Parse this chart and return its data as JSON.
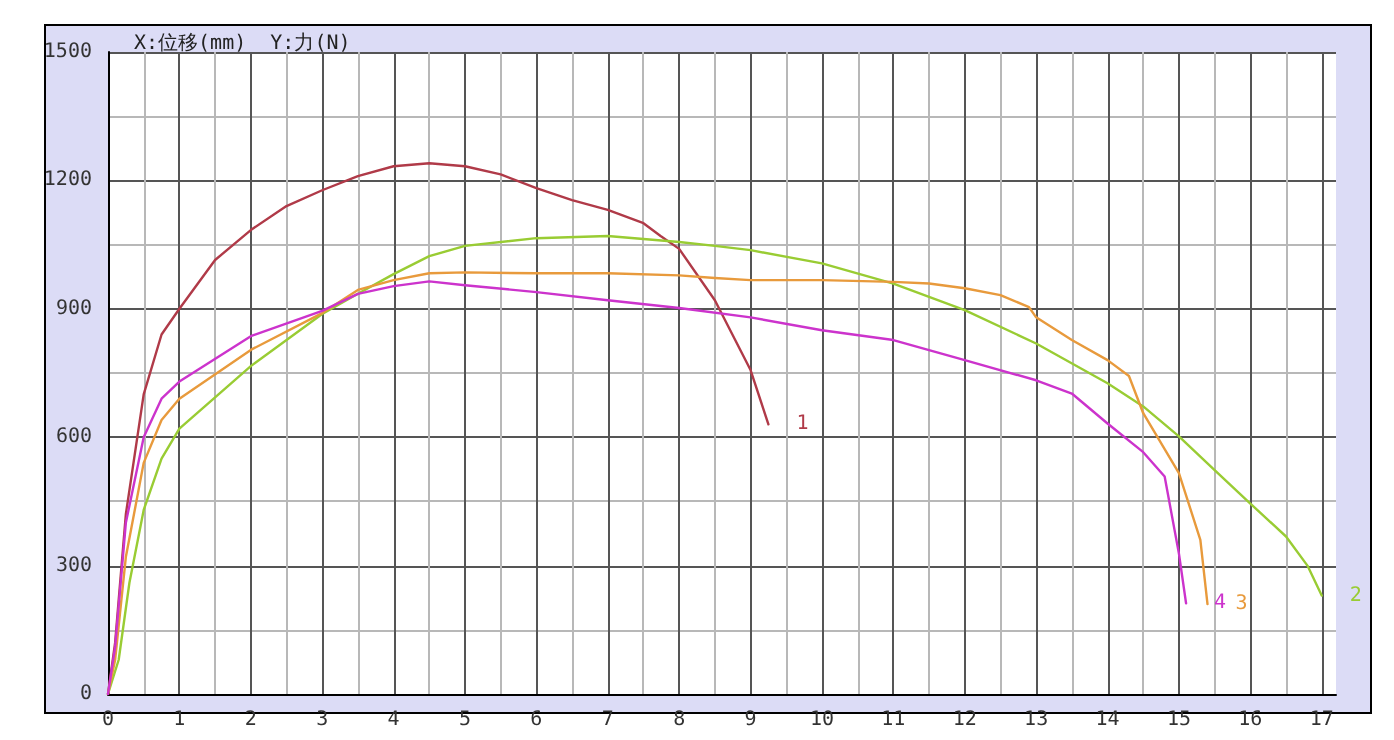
{
  "chart_data": {
    "type": "line",
    "title": "X:位移(mm)  Y:力(N)",
    "xlim": [
      0,
      17.2
    ],
    "ylim": [
      0,
      1500
    ],
    "xticks": [
      0,
      {
        "value": 0.5,
        "label": null
      },
      1,
      {
        "value": 1.5,
        "label": null
      },
      2,
      {
        "value": 2.5,
        "label": null
      },
      3,
      {
        "value": 3.5,
        "label": null
      },
      4,
      {
        "value": 4.5,
        "label": null
      },
      5,
      {
        "value": 5.5,
        "label": null
      },
      6,
      {
        "value": 6.5,
        "label": null
      },
      7,
      {
        "value": 7.5,
        "label": null
      },
      8,
      {
        "value": 8.5,
        "label": null
      },
      9,
      {
        "value": 9.5,
        "label": null
      },
      10,
      {
        "value": 10.5,
        "label": null
      },
      11,
      {
        "value": 11.5,
        "label": null
      },
      12,
      {
        "value": 12.5,
        "label": null
      },
      13,
      {
        "value": 13.5,
        "label": null
      },
      14,
      {
        "value": 14.5,
        "label": null
      },
      15,
      {
        "value": 15.5,
        "label": null
      },
      16,
      {
        "value": 16.5,
        "label": null
      },
      17
    ],
    "yticks": [
      0,
      {
        "value": 150,
        "label": null
      },
      300,
      {
        "value": 450,
        "label": null
      },
      600,
      {
        "value": 750,
        "label": null
      },
      900,
      {
        "value": 1050,
        "label": null
      },
      1200,
      {
        "value": 1350,
        "label": null
      },
      1500
    ],
    "grid": true,
    "legend": false,
    "marker": "none",
    "line_style": "solid",
    "series": [
      {
        "name": "1",
        "color": "#b03a48",
        "x": [
          0,
          0.1,
          0.25,
          0.5,
          0.75,
          1,
          1.5,
          2,
          2.5,
          3,
          3.5,
          4,
          4.5,
          5,
          5.5,
          6,
          6.5,
          7,
          7.5,
          7.74,
          8,
          8.5,
          9,
          9.25
        ],
        "values": [
          0,
          120,
          420,
          700,
          840,
          900,
          1014,
          1084,
          1140,
          1177,
          1210,
          1233,
          1240,
          1233,
          1214,
          1182,
          1154,
          1131,
          1100,
          1070,
          1040,
          920,
          757,
          630
        ]
      },
      {
        "name": "2",
        "color": "#99cc33",
        "x": [
          0,
          0.15,
          0.3,
          0.5,
          0.75,
          1,
          2,
          3,
          3.5,
          4,
          4.5,
          5,
          6,
          7,
          8,
          8.5,
          9,
          10,
          11,
          12,
          13,
          14,
          14.5,
          15,
          15.5,
          16,
          16.5,
          16.8,
          17
        ],
        "values": [
          0,
          80,
          260,
          430,
          550,
          620,
          766,
          888,
          935,
          981,
          1023,
          1047,
          1065,
          1070,
          1056,
          1047,
          1037,
          1006,
          959,
          897,
          819,
          726,
          672,
          602,
          523,
          445,
          368,
          300,
          230
        ]
      },
      {
        "name": "3",
        "color": "#e89a3c",
        "x": [
          0,
          0.1,
          0.25,
          0.5,
          0.75,
          1,
          2,
          3,
          3.5,
          4,
          4.5,
          5,
          6,
          7,
          8,
          8.5,
          9,
          10,
          11,
          11.5,
          12,
          12.5,
          12.9,
          13,
          13.5,
          14,
          14.3,
          14.5,
          15,
          15.3,
          15.4
        ],
        "values": [
          0,
          80,
          320,
          540,
          640,
          690,
          804,
          890,
          944,
          967,
          983,
          985,
          983,
          983,
          978,
          972,
          967,
          967,
          963,
          959,
          948,
          932,
          904,
          880,
          827,
          780,
          743,
          656,
          516,
          360,
          210
        ]
      },
      {
        "name": "4",
        "color": "#cc33cc",
        "x": [
          0,
          0.1,
          0.25,
          0.5,
          0.75,
          1,
          2,
          3,
          3.5,
          4,
          4.5,
          5,
          6,
          7,
          8,
          9,
          10,
          11,
          12,
          13,
          13.5,
          14,
          14.5,
          14.8,
          15,
          15.1
        ],
        "values": [
          0,
          110,
          400,
          600,
          690,
          730,
          836,
          895,
          935,
          953,
          964,
          955,
          939,
          920,
          902,
          880,
          850,
          827,
          780,
          733,
          702,
          632,
          565,
          508,
          328,
          212
        ]
      }
    ]
  }
}
